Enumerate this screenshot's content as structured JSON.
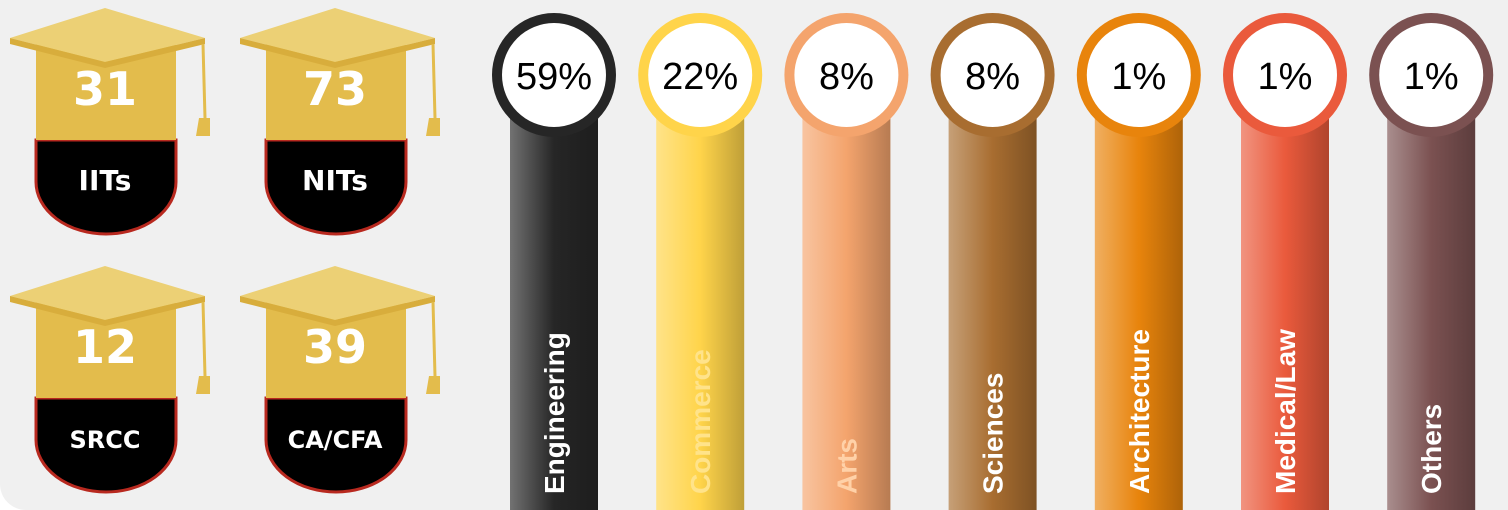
{
  "caps": [
    {
      "number": "31",
      "label": "IITs"
    },
    {
      "number": "73",
      "label": "NITs"
    },
    {
      "number": "12",
      "label": "SRCC"
    },
    {
      "number": "39",
      "label": "CA/CFA"
    }
  ],
  "colors": {
    "cap_gold": "#e3bc4c",
    "cap_gold_light": "#ecd075",
    "dome": "#000000",
    "dome_border": "#b8291f"
  },
  "chart_data": {
    "type": "bar",
    "categories": [
      "Engineering",
      "Commerce",
      "Arts",
      "Sciences",
      "Architecture",
      "Medical/Law",
      "Others"
    ],
    "values": [
      59,
      22,
      8,
      8,
      1,
      1,
      1
    ],
    "value_labels": [
      "59%",
      "22%",
      "8%",
      "8%",
      "1%",
      "1%",
      "1%"
    ],
    "colors": [
      "#262626",
      "#ffd44a",
      "#f4a46d",
      "#a86d30",
      "#e8840c",
      "#ea5a3c",
      "#7b5151"
    ],
    "label_colors": [
      "#ffffff",
      "#ffe38a",
      "#ffd1a8",
      "#ffffff",
      "#ffffff",
      "#ffffff",
      "#ffffff"
    ]
  }
}
